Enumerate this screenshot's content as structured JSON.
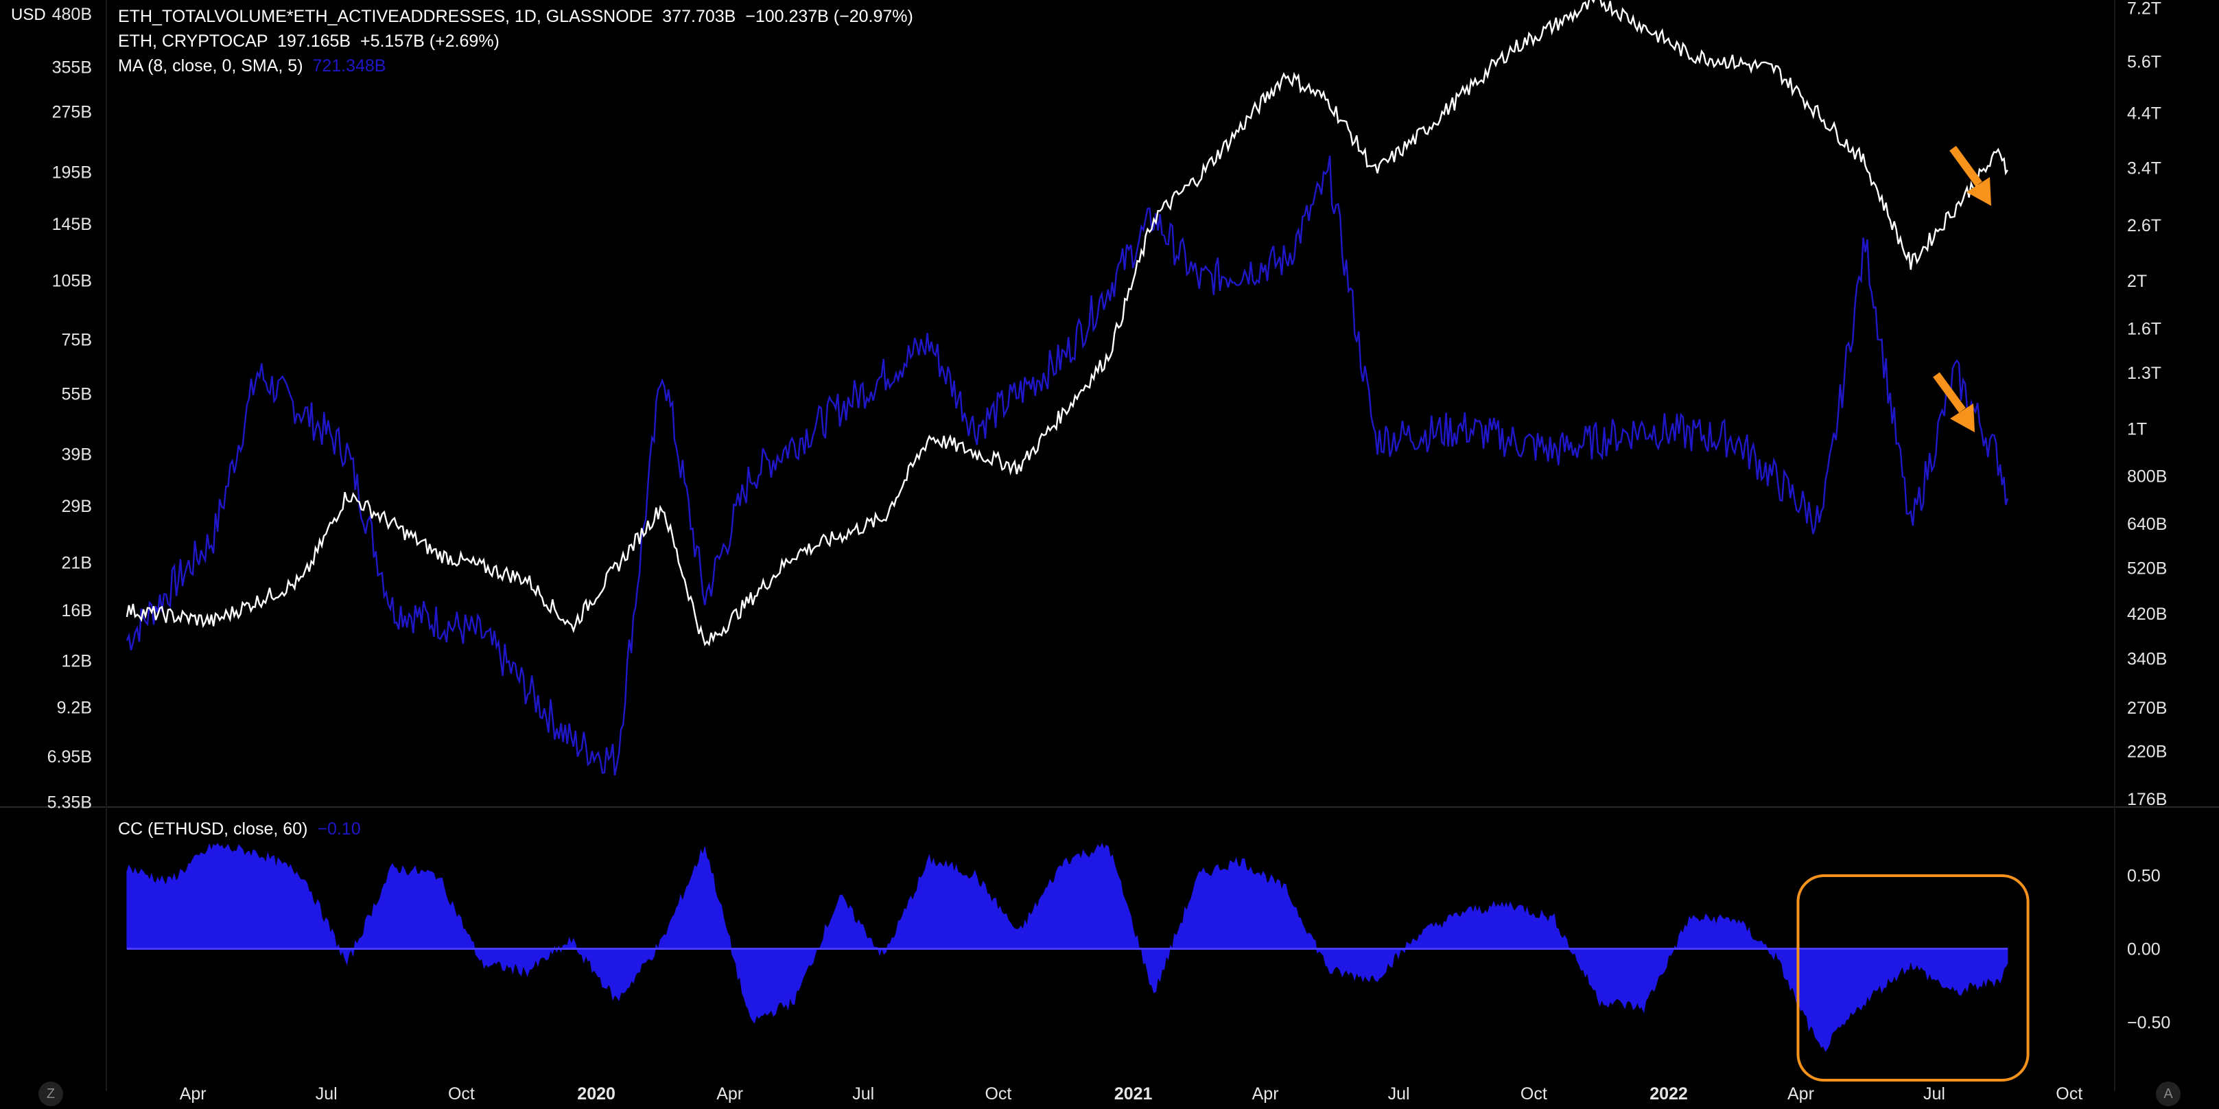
{
  "chart_data": [
    {
      "type": "line",
      "axis_unit_left": "USD",
      "legend": [
        {
          "label": "ETH_TOTALVOLUME*ETH_ACTIVEADDRESSES, 1D, GLASSNODE",
          "values": "377.703B  −100.237B (−20.97%)"
        },
        {
          "label": "ETH, CRYPTOCAP",
          "values": "197.165B  +5.157B (+2.69%)"
        },
        {
          "label": "MA (8, close, 0, SMA, 5)",
          "values": "721.348B"
        }
      ],
      "left_axis_ticks": [
        "480B",
        "355B",
        "275B",
        "195B",
        "145B",
        "105B",
        "75B",
        "55B",
        "39B",
        "29B",
        "21B",
        "16B",
        "12B",
        "9.2B",
        "6.95B",
        "5.35B"
      ],
      "right_axis_ticks": [
        "7.2T",
        "5.6T",
        "4.4T",
        "3.4T",
        "2.6T",
        "2T",
        "1.6T",
        "1.3T",
        "1T",
        "800B",
        "640B",
        "520B",
        "420B",
        "340B",
        "270B",
        "220B",
        "176B"
      ],
      "log_scale": true,
      "x_ticks": [
        "Apr",
        "Jul",
        "Oct",
        "2020",
        "Apr",
        "Jul",
        "Oct",
        "2021",
        "Apr",
        "Jul",
        "Oct",
        "2022",
        "Apr",
        "Jul",
        "Oct"
      ],
      "x_ticks_bold": [
        false,
        false,
        false,
        true,
        false,
        false,
        false,
        true,
        false,
        false,
        false,
        true,
        false,
        false,
        false
      ],
      "series": [
        {
          "name": "ETH, CRYPTOCAP",
          "color": "#ffffff",
          "axis": "left",
          "x": [
            "2019-02",
            "2019-04",
            "2019-06",
            "2019-07",
            "2019-09",
            "2019-11",
            "2019-12",
            "2020-02",
            "2020-03",
            "2020-05",
            "2020-07",
            "2020-08",
            "2020-10",
            "2020-12",
            "2021-01",
            "2021-02",
            "2021-04",
            "2021-05",
            "2021-06",
            "2021-07",
            "2021-09",
            "2021-11",
            "2022-01",
            "2022-03",
            "2022-05",
            "2022-06",
            "2022-08",
            "2022-08-20"
          ],
          "values": [
            16,
            15,
            19,
            31,
            22,
            19,
            14.5,
            29,
            13,
            22,
            27,
            43,
            36,
            68,
            150,
            190,
            340,
            290,
            195,
            240,
            390,
            520,
            380,
            350,
            205,
            115,
            220,
            197
          ]
        },
        {
          "name": "MA (8, close, 0, SMA, 5)",
          "color": "#1f17c8",
          "axis": "right",
          "x": [
            "2019-02",
            "2019-04",
            "2019-05",
            "2019-07",
            "2019-08",
            "2019-10",
            "2019-12",
            "2020-01",
            "2020-02",
            "2020-03",
            "2020-04",
            "2020-06",
            "2020-08",
            "2020-09",
            "2020-11",
            "2021-01",
            "2021-02",
            "2021-04",
            "2021-05",
            "2021-06",
            "2021-08",
            "2021-10",
            "2021-12",
            "2022-02",
            "2022-04",
            "2022-05",
            "2022-06",
            "2022-07",
            "2022-08",
            "2022-08-20"
          ],
          "values": [
            370,
            600,
            1300,
            900,
            430,
            380,
            230,
            210,
            1350,
            450,
            800,
            1100,
            1500,
            1000,
            1400,
            2700,
            2000,
            2200,
            3300,
            950,
            1000,
            900,
            1000,
            950,
            640,
            2400,
            620,
            1300,
            850,
            720
          ]
        }
      ],
      "annotations": [
        {
          "shape": "arrow",
          "color": "#f7931a",
          "direction": "down-right",
          "target": "ETH, CRYPTOCAP"
        },
        {
          "shape": "arrow",
          "color": "#f7931a",
          "direction": "down-right",
          "target": "MA (8, close, 0, SMA, 5)"
        }
      ]
    },
    {
      "type": "area",
      "title": "CC (ETHUSD, close, 60)",
      "last_value": "−0.10",
      "color": "#1f17e6",
      "ylim": [
        -0.9,
        0.9
      ],
      "y_ticks": [
        "0.50",
        "0.00",
        "−0.50"
      ],
      "x": [
        "2019-02",
        "2019-03",
        "2019-04",
        "2019-05",
        "2019-06",
        "2019-07",
        "2019-08",
        "2019-09",
        "2019-10",
        "2019-11",
        "2019-12",
        "2020-01",
        "2020-02",
        "2020-03",
        "2020-04",
        "2020-05",
        "2020-06",
        "2020-07",
        "2020-08",
        "2020-09",
        "2020-10",
        "2020-11",
        "2020-12",
        "2021-01",
        "2021-02",
        "2021-03",
        "2021-04",
        "2021-05",
        "2021-06",
        "2021-07",
        "2021-08",
        "2021-09",
        "2021-10",
        "2021-11",
        "2021-12",
        "2022-01",
        "2022-02",
        "2022-03",
        "2022-04",
        "2022-05",
        "2022-06",
        "2022-07",
        "2022-08",
        "2022-08-20"
      ],
      "values": [
        0.55,
        0.45,
        0.7,
        0.65,
        0.5,
        -0.1,
        0.55,
        0.5,
        -0.1,
        -0.15,
        0.05,
        -0.35,
        0.05,
        0.7,
        -0.5,
        -0.35,
        0.35,
        -0.05,
        0.6,
        0.5,
        0.1,
        0.6,
        0.7,
        -0.3,
        0.5,
        0.6,
        0.4,
        -0.15,
        -0.2,
        0.1,
        0.25,
        0.3,
        0.2,
        -0.35,
        -0.4,
        0.2,
        0.2,
        -0.05,
        -0.7,
        -0.35,
        -0.1,
        -0.3,
        -0.2,
        -0.1
      ],
      "annotations": [
        {
          "shape": "rounded-rectangle",
          "color": "#f7931a",
          "x_range": [
            "2022-04",
            "2022-09"
          ]
        }
      ]
    }
  ],
  "corner_left": "Z",
  "corner_right": "A"
}
